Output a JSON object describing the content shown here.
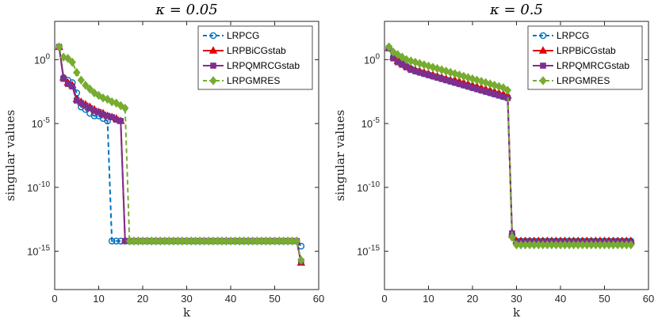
{
  "chart_data": [
    {
      "type": "line",
      "title": "κ = 0.05",
      "xlabel": "k",
      "ylabel": "singular values",
      "xlim": [
        0,
        60
      ],
      "ylim_exponent": [
        -18,
        3
      ],
      "yscale": "log",
      "x_ticks": [
        "0",
        "10",
        "20",
        "30",
        "40",
        "50",
        "60"
      ],
      "y_ticks": [
        {
          "base": "10",
          "exp": "0",
          "value": 0
        },
        {
          "base": "10",
          "exp": "-5",
          "value": -5
        },
        {
          "base": "10",
          "exp": "-10",
          "value": -10
        },
        {
          "base": "10",
          "exp": "-15",
          "value": -15
        }
      ],
      "legend_position": "top-right",
      "grid": false,
      "series": [
        {
          "name": "LRPCG",
          "color": "#0072BD",
          "marker": "circle",
          "dash": "dashed",
          "log10_values": [
            1.0,
            -1.4,
            -1.6,
            -1.8,
            -2.6,
            -3.7,
            -3.9,
            -4.2,
            -4.4,
            -4.4,
            -4.6,
            -4.8,
            -14.2,
            -14.2,
            -14.2,
            -14.2,
            -14.2,
            -14.2,
            -14.2,
            -14.2,
            -14.2,
            -14.2,
            -14.2,
            -14.2,
            -14.2,
            -14.2,
            -14.2,
            -14.2,
            -14.2,
            -14.2,
            -14.2,
            -14.2,
            -14.2,
            -14.2,
            -14.2,
            -14.2,
            -14.2,
            -14.2,
            -14.2,
            -14.2,
            -14.2,
            -14.2,
            -14.2,
            -14.2,
            -14.2,
            -14.2,
            -14.2,
            -14.2,
            -14.2,
            -14.2,
            -14.2,
            -14.2,
            -14.2,
            -14.2,
            -14.2,
            -14.6
          ]
        },
        {
          "name": "LRPBiCGstab",
          "color": "#E00000",
          "marker": "triangle",
          "dash": "solid",
          "log10_values": [
            1.0,
            -1.4,
            -1.8,
            -2.0,
            -3.1,
            -3.3,
            -3.5,
            -3.7,
            -3.9,
            -4.1,
            -4.2,
            -4.4,
            -4.5,
            -4.6,
            -4.8,
            -14.2,
            -14.2,
            -14.2,
            -14.2,
            -14.2,
            -14.2,
            -14.2,
            -14.2,
            -14.2,
            -14.2,
            -14.2,
            -14.2,
            -14.2,
            -14.2,
            -14.2,
            -14.2,
            -14.2,
            -14.2,
            -14.2,
            -14.2,
            -14.2,
            -14.2,
            -14.2,
            -14.2,
            -14.2,
            -14.2,
            -14.2,
            -14.2,
            -14.2,
            -14.2,
            -14.2,
            -14.2,
            -14.2,
            -14.2,
            -14.2,
            -14.2,
            -14.2,
            -14.2,
            -14.2,
            -14.2,
            -15.9
          ]
        },
        {
          "name": "LRPQMRCGstab",
          "color": "#7E2F8E",
          "marker": "square",
          "dash": "solid",
          "log10_values": [
            1.0,
            -1.5,
            -1.9,
            -2.1,
            -3.2,
            -3.4,
            -3.6,
            -3.8,
            -4.0,
            -4.1,
            -4.3,
            -4.4,
            -4.5,
            -4.7,
            -4.8,
            -14.2,
            -14.2,
            -14.2,
            -14.2,
            -14.2,
            -14.2,
            -14.2,
            -14.2,
            -14.2,
            -14.2,
            -14.2,
            -14.2,
            -14.2,
            -14.2,
            -14.2,
            -14.2,
            -14.2,
            -14.2,
            -14.2,
            -14.2,
            -14.2,
            -14.2,
            -14.2,
            -14.2,
            -14.2,
            -14.2,
            -14.2,
            -14.2,
            -14.2,
            -14.2,
            -14.2,
            -14.2,
            -14.2,
            -14.2,
            -14.2,
            -14.2,
            -14.2,
            -14.2,
            -14.2,
            -14.2,
            -15.8
          ]
        },
        {
          "name": "LRPGMRES",
          "color": "#77AC30",
          "marker": "diamond",
          "dash": "dashed",
          "log10_values": [
            1.0,
            0.2,
            0.1,
            -0.2,
            -1.0,
            -1.6,
            -2.0,
            -2.3,
            -2.6,
            -2.8,
            -3.0,
            -3.1,
            -3.3,
            -3.4,
            -3.6,
            -3.8,
            -14.2,
            -14.2,
            -14.2,
            -14.2,
            -14.2,
            -14.2,
            -14.2,
            -14.2,
            -14.2,
            -14.2,
            -14.2,
            -14.2,
            -14.2,
            -14.2,
            -14.2,
            -14.2,
            -14.2,
            -14.2,
            -14.2,
            -14.2,
            -14.2,
            -14.2,
            -14.2,
            -14.2,
            -14.2,
            -14.2,
            -14.2,
            -14.2,
            -14.2,
            -14.2,
            -14.2,
            -14.2,
            -14.2,
            -14.2,
            -14.2,
            -14.2,
            -14.2,
            -14.2,
            -14.2,
            -15.7
          ]
        }
      ]
    },
    {
      "type": "line",
      "title": "κ = 0.5",
      "xlabel": "k",
      "ylabel": "singular values",
      "xlim": [
        0,
        60
      ],
      "ylim_exponent": [
        -18,
        3
      ],
      "yscale": "log",
      "x_ticks": [
        "0",
        "10",
        "20",
        "30",
        "40",
        "50",
        "60"
      ],
      "y_ticks": [
        {
          "base": "10",
          "exp": "0",
          "value": 0
        },
        {
          "base": "10",
          "exp": "-5",
          "value": -5
        },
        {
          "base": "10",
          "exp": "-10",
          "value": -10
        },
        {
          "base": "10",
          "exp": "-15",
          "value": -15
        }
      ],
      "legend_position": "top-right",
      "grid": false,
      "series": [
        {
          "name": "LRPCG",
          "color": "#0072BD",
          "marker": "circle",
          "dash": "dashed",
          "log10_values": [
            0.9,
            0.2,
            -0.1,
            -0.3,
            -0.5,
            -0.7,
            -0.9,
            -1.0,
            -1.1,
            -1.2,
            -1.3,
            -1.4,
            -1.5,
            -1.6,
            -1.7,
            -1.8,
            -1.9,
            -2.0,
            -2.1,
            -2.2,
            -2.3,
            -2.4,
            -2.5,
            -2.6,
            -2.7,
            -2.8,
            -2.9,
            -3.0,
            -13.7,
            -14.2,
            -14.2,
            -14.2,
            -14.2,
            -14.2,
            -14.2,
            -14.2,
            -14.2,
            -14.2,
            -14.2,
            -14.2,
            -14.2,
            -14.2,
            -14.2,
            -14.2,
            -14.2,
            -14.2,
            -14.2,
            -14.2,
            -14.2,
            -14.2,
            -14.2,
            -14.2,
            -14.2,
            -14.2,
            -14.2,
            -14.2
          ]
        },
        {
          "name": "LRPBiCGstab",
          "color": "#E00000",
          "marker": "triangle",
          "dash": "solid",
          "log10_values": [
            0.9,
            0.2,
            -0.1,
            -0.3,
            -0.5,
            -0.7,
            -0.8,
            -0.9,
            -1.0,
            -1.1,
            -1.2,
            -1.3,
            -1.4,
            -1.5,
            -1.6,
            -1.6,
            -1.7,
            -1.8,
            -1.9,
            -2.0,
            -2.1,
            -2.2,
            -2.3,
            -2.4,
            -2.5,
            -2.6,
            -2.7,
            -2.8,
            -13.7,
            -14.2,
            -14.2,
            -14.2,
            -14.2,
            -14.2,
            -14.2,
            -14.2,
            -14.2,
            -14.2,
            -14.2,
            -14.2,
            -14.2,
            -14.2,
            -14.2,
            -14.2,
            -14.2,
            -14.2,
            -14.2,
            -14.2,
            -14.2,
            -14.2,
            -14.2,
            -14.2,
            -14.2,
            -14.2,
            -14.2,
            -14.2
          ]
        },
        {
          "name": "LRPQMRCGstab",
          "color": "#7E2F8E",
          "marker": "square",
          "dash": "solid",
          "log10_values": [
            0.9,
            0.1,
            -0.2,
            -0.4,
            -0.6,
            -0.8,
            -0.9,
            -1.0,
            -1.1,
            -1.2,
            -1.3,
            -1.4,
            -1.5,
            -1.6,
            -1.7,
            -1.8,
            -1.9,
            -2.0,
            -2.1,
            -2.2,
            -2.3,
            -2.4,
            -2.5,
            -2.6,
            -2.7,
            -2.8,
            -2.9,
            -3.0,
            -13.6,
            -14.3,
            -14.3,
            -14.3,
            -14.3,
            -14.3,
            -14.3,
            -14.3,
            -14.3,
            -14.3,
            -14.3,
            -14.3,
            -14.3,
            -14.3,
            -14.3,
            -14.3,
            -14.3,
            -14.3,
            -14.3,
            -14.3,
            -14.3,
            -14.3,
            -14.3,
            -14.3,
            -14.3,
            -14.3,
            -14.3,
            -14.3
          ]
        },
        {
          "name": "LRPGMRES",
          "color": "#77AC30",
          "marker": "diamond",
          "dash": "dashed",
          "log10_values": [
            1.0,
            0.6,
            0.4,
            0.2,
            0.0,
            -0.1,
            -0.2,
            -0.3,
            -0.4,
            -0.5,
            -0.6,
            -0.7,
            -0.8,
            -0.9,
            -1.0,
            -1.1,
            -1.2,
            -1.3,
            -1.4,
            -1.5,
            -1.6,
            -1.7,
            -1.8,
            -1.9,
            -2.0,
            -2.1,
            -2.2,
            -2.4,
            -13.9,
            -14.5,
            -14.5,
            -14.5,
            -14.5,
            -14.5,
            -14.5,
            -14.5,
            -14.5,
            -14.5,
            -14.5,
            -14.5,
            -14.5,
            -14.5,
            -14.5,
            -14.5,
            -14.5,
            -14.5,
            -14.5,
            -14.5,
            -14.5,
            -14.5,
            -14.5,
            -14.5,
            -14.5,
            -14.5,
            -14.5,
            -14.5
          ]
        }
      ]
    }
  ]
}
